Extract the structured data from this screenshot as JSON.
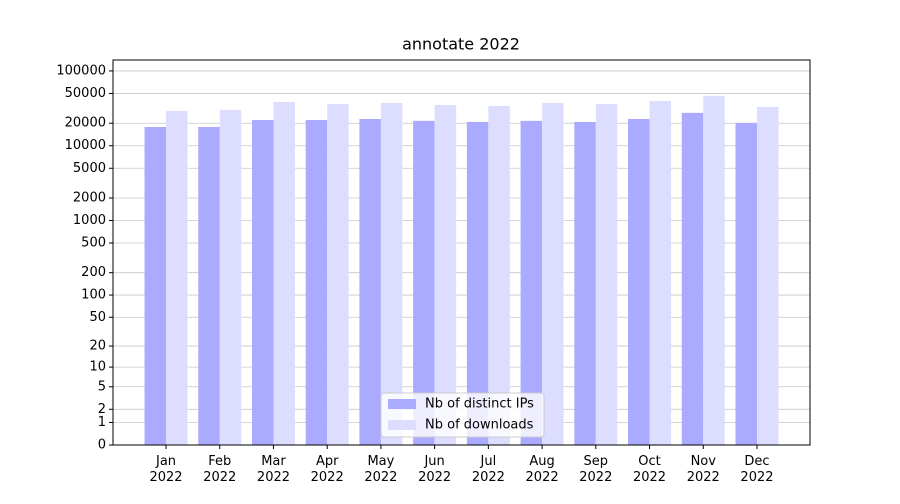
{
  "chart_data": {
    "type": "bar",
    "title": "annotate 2022",
    "categories": [
      "Jan\n2022",
      "Feb\n2022",
      "Mar\n2022",
      "Apr\n2022",
      "May\n2022",
      "Jun\n2022",
      "Jul\n2022",
      "Aug\n2022",
      "Sep\n2022",
      "Oct\n2022",
      "Nov\n2022",
      "Dec\n2022"
    ],
    "series": [
      {
        "name": "Nb of distinct IPs",
        "color": "#aaaaff",
        "values": [
          17800,
          17800,
          22100,
          22100,
          22800,
          21500,
          20800,
          21500,
          20800,
          22800,
          27500,
          20200
        ]
      },
      {
        "name": "Nb of downloads",
        "color": "#ddddff",
        "values": [
          29200,
          30100,
          38500,
          36200,
          37300,
          35100,
          34000,
          37300,
          36200,
          39700,
          46400,
          33000
        ]
      }
    ],
    "yscale": "log1p",
    "ylim": [
      0,
      140000
    ],
    "yticks": [
      0,
      1,
      2,
      5,
      10,
      20,
      50,
      100,
      200,
      500,
      1000,
      2000,
      5000,
      10000,
      20000,
      50000,
      100000
    ],
    "grid": true,
    "legend": "lower center"
  }
}
